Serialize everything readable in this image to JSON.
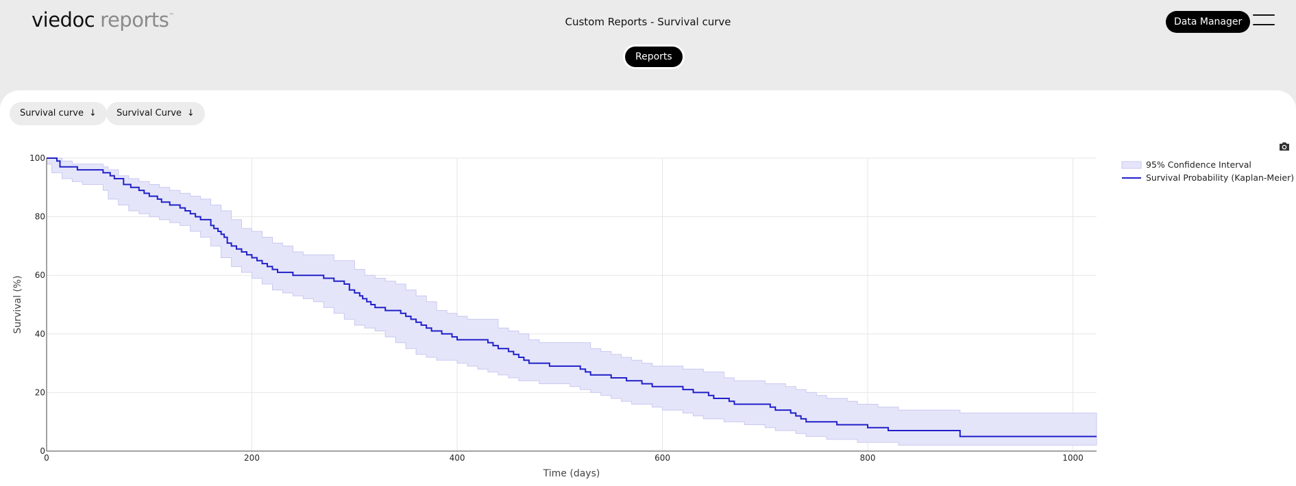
{
  "app": {
    "brand": "viedoc",
    "product": "reports",
    "trademark": "™",
    "page_title": "Custom Reports - Survival curve",
    "data_manager_label": "Data Manager",
    "reports_label": "Reports"
  },
  "filters": [
    {
      "label": "Survival curve",
      "arrow": "↓"
    },
    {
      "label": "Survival Curve",
      "arrow": "↓"
    }
  ],
  "icons": {
    "menu": "menu-icon",
    "camera": "camera-icon"
  },
  "colors": {
    "line": "#1f1fc8",
    "band_fill": "#e5e5fa",
    "band_stroke": "#c8c8f0",
    "accent": "#000000"
  },
  "chart_data": {
    "type": "line",
    "xlabel": "Time (days)",
    "ylabel": "Survival (%)",
    "xlim": [
      0,
      1023
    ],
    "ylim": [
      0,
      100
    ],
    "xticks": [
      0,
      200,
      400,
      600,
      800,
      1000
    ],
    "yticks": [
      0,
      20,
      40,
      60,
      80,
      100
    ],
    "grid": true,
    "legend_position": "top-right",
    "series": [
      {
        "name": "95% Confidence Interval",
        "kind": "band",
        "x": [
          0,
          5,
          15,
          25,
          35,
          45,
          55,
          60,
          70,
          80,
          90,
          100,
          110,
          120,
          130,
          140,
          150,
          160,
          170,
          180,
          190,
          200,
          210,
          220,
          230,
          240,
          250,
          260,
          270,
          280,
          290,
          300,
          310,
          320,
          330,
          340,
          350,
          360,
          370,
          380,
          390,
          400,
          410,
          420,
          430,
          440,
          450,
          460,
          470,
          480,
          490,
          500,
          510,
          520,
          530,
          540,
          550,
          560,
          570,
          580,
          590,
          600,
          610,
          620,
          630,
          640,
          650,
          660,
          670,
          680,
          690,
          700,
          710,
          720,
          730,
          740,
          750,
          760,
          770,
          780,
          790,
          800,
          810,
          820,
          830,
          840,
          850,
          860,
          870,
          880,
          890,
          900,
          910,
          920,
          930,
          940,
          950,
          960,
          970,
          980,
          990,
          1000,
          1010,
          1023
        ],
        "upper": [
          100,
          100,
          99,
          98,
          98,
          98,
          97,
          96,
          94,
          93,
          92,
          91,
          90,
          89,
          88,
          87,
          86,
          84,
          82,
          79,
          76,
          75,
          73,
          71,
          70,
          68,
          67,
          67,
          67,
          65,
          65,
          62,
          60,
          59,
          58,
          57,
          55,
          53,
          51,
          48,
          47,
          46,
          45,
          45,
          45,
          42,
          41,
          40,
          38,
          37,
          37,
          37,
          37,
          37,
          35,
          34,
          33,
          32,
          31,
          30,
          29,
          29,
          29,
          28,
          28,
          27,
          27,
          25,
          24,
          24,
          24,
          23,
          23,
          22,
          21,
          20,
          19,
          18,
          18,
          17,
          16,
          16,
          15,
          15,
          14,
          14,
          14,
          14,
          14,
          14,
          13,
          13,
          13,
          13,
          13,
          13,
          13,
          13,
          13,
          13,
          13,
          13,
          13,
          12
        ],
        "lower": [
          100,
          98,
          95,
          93,
          92,
          91,
          91,
          89,
          86,
          84,
          82,
          81,
          80,
          79,
          78,
          77,
          75,
          73,
          70,
          66,
          63,
          61,
          59,
          57,
          55,
          54,
          53,
          52,
          51,
          49,
          47,
          45,
          43,
          42,
          41,
          39,
          37,
          35,
          33,
          32,
          31,
          31,
          30,
          29,
          28,
          27,
          26,
          25,
          24,
          24,
          23,
          23,
          23,
          22,
          21,
          20,
          19,
          18,
          17,
          16,
          16,
          15,
          14,
          14,
          13,
          12,
          11,
          11,
          10,
          10,
          9,
          9,
          8,
          7,
          7,
          6,
          5,
          5,
          4,
          4,
          4,
          3,
          3,
          3,
          3,
          2,
          2,
          2,
          2,
          2,
          2,
          2,
          2,
          2,
          2,
          2,
          2,
          2,
          2,
          2,
          2,
          2,
          2,
          2
        ]
      },
      {
        "name": "Survival Probability (Kaplan-Meier)",
        "kind": "step",
        "x": [
          0,
          10,
          13,
          30,
          55,
          62,
          66,
          75,
          82,
          90,
          95,
          100,
          108,
          112,
          120,
          130,
          135,
          140,
          145,
          150,
          160,
          163,
          167,
          170,
          173,
          176,
          180,
          185,
          190,
          195,
          200,
          205,
          210,
          215,
          220,
          225,
          230,
          240,
          245,
          250,
          260,
          270,
          280,
          285,
          290,
          295,
          300,
          305,
          308,
          312,
          316,
          320,
          325,
          330,
          340,
          345,
          350,
          355,
          360,
          365,
          370,
          375,
          380,
          385,
          390,
          395,
          400,
          410,
          420,
          430,
          435,
          440,
          450,
          455,
          460,
          465,
          470,
          480,
          490,
          500,
          510,
          520,
          525,
          530,
          540,
          550,
          560,
          565,
          570,
          580,
          590,
          600,
          610,
          620,
          625,
          630,
          640,
          645,
          650,
          660,
          665,
          670,
          690,
          700,
          705,
          710,
          720,
          725,
          730,
          735,
          740,
          760,
          770,
          790,
          800,
          810,
          820,
          830,
          840,
          850,
          860,
          870,
          880,
          890,
          1023
        ],
        "y": [
          100,
          99,
          97,
          96,
          95,
          94,
          93,
          91,
          90,
          89,
          88,
          87,
          86,
          85,
          84,
          83,
          82,
          81,
          80,
          79,
          77,
          76,
          75,
          74,
          73,
          71,
          70,
          69,
          68,
          67,
          66,
          65,
          64,
          63,
          62,
          61,
          61,
          60,
          60,
          60,
          60,
          59,
          58,
          58,
          57,
          55,
          54,
          53,
          52,
          51,
          50,
          49,
          49,
          48,
          48,
          47,
          46,
          45,
          44,
          43,
          42,
          41,
          41,
          40,
          40,
          39,
          38,
          38,
          38,
          37,
          36,
          35,
          34,
          33,
          32,
          31,
          30,
          30,
          29,
          29,
          29,
          28,
          27,
          26,
          26,
          25,
          25,
          24,
          24,
          23,
          22,
          22,
          22,
          21,
          21,
          20,
          20,
          19,
          18,
          18,
          17,
          16,
          16,
          16,
          15,
          14,
          14,
          13,
          12,
          11,
          10,
          10,
          9,
          9,
          8,
          8,
          7,
          7,
          7,
          7,
          7,
          7,
          7,
          5,
          5
        ]
      }
    ]
  }
}
